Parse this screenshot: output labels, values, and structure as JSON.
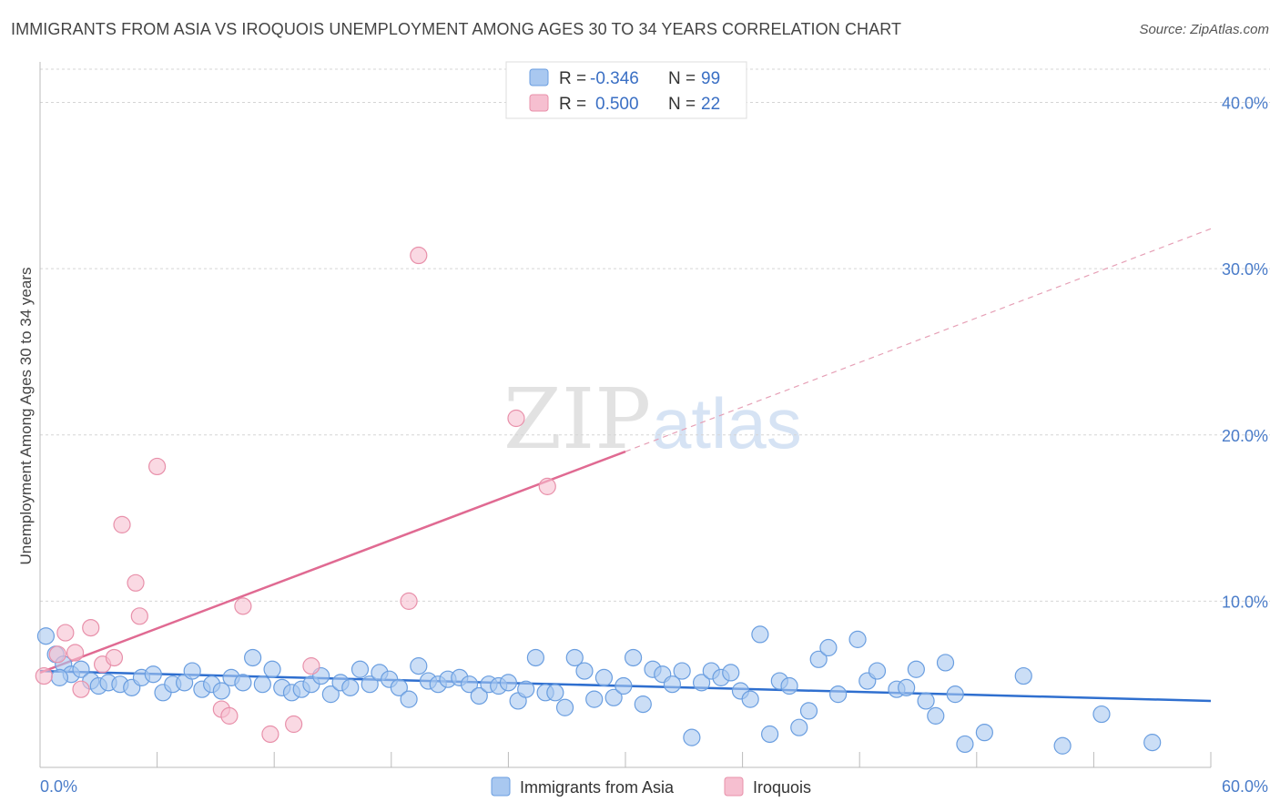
{
  "chart_data": {
    "type": "scatter",
    "title": "IMMIGRANTS FROM ASIA VS IROQUOIS UNEMPLOYMENT AMONG AGES 30 TO 34 YEARS CORRELATION CHART",
    "source": "Source: ZipAtlas.com",
    "xlabel": "",
    "ylabel": "Unemployment Among Ages 30 to 34 years",
    "xlim": [
      0,
      60
    ],
    "ylim": [
      0,
      42
    ],
    "x_tick_labels": [
      "0.0%",
      "60.0%"
    ],
    "y_ticks": [
      10,
      20,
      30,
      40
    ],
    "y_tick_labels": [
      "10.0%",
      "20.0%",
      "30.0%",
      "40.0%"
    ],
    "watermark": {
      "zip": "ZIP",
      "atlas": "atlas"
    },
    "legend": {
      "rows": [
        {
          "r_label": "R =",
          "r_value": "-0.346",
          "n_label": "N =",
          "n_value": "99"
        },
        {
          "r_label": "R =",
          "r_value": "0.500",
          "n_label": "N =",
          "n_value": "22"
        }
      ]
    },
    "series": [
      {
        "name": "Immigrants from Asia",
        "color": "#a9c8f0",
        "stroke": "#6a9ee0",
        "trend_color": "#2f6fcf",
        "trend": {
          "x0": 0,
          "y0": 5.8,
          "x1": 60,
          "y1": 4.0
        },
        "points": [
          [
            0.3,
            7.9
          ],
          [
            0.8,
            6.8
          ],
          [
            1.2,
            6.2
          ],
          [
            1.6,
            5.6
          ],
          [
            2.1,
            5.9
          ],
          [
            2.6,
            5.2
          ],
          [
            3.0,
            4.9
          ],
          [
            3.5,
            5.1
          ],
          [
            4.1,
            5.0
          ],
          [
            4.7,
            4.8
          ],
          [
            5.2,
            5.4
          ],
          [
            5.8,
            5.6
          ],
          [
            6.3,
            4.5
          ],
          [
            6.8,
            5.0
          ],
          [
            7.4,
            5.1
          ],
          [
            7.8,
            5.8
          ],
          [
            8.3,
            4.7
          ],
          [
            8.8,
            5.0
          ],
          [
            9.3,
            4.6
          ],
          [
            9.8,
            5.4
          ],
          [
            10.4,
            5.1
          ],
          [
            10.9,
            6.6
          ],
          [
            11.4,
            5.0
          ],
          [
            11.9,
            5.9
          ],
          [
            12.4,
            4.8
          ],
          [
            12.9,
            4.5
          ],
          [
            13.4,
            4.7
          ],
          [
            13.9,
            5.0
          ],
          [
            14.4,
            5.5
          ],
          [
            14.9,
            4.4
          ],
          [
            15.4,
            5.1
          ],
          [
            15.9,
            4.8
          ],
          [
            16.4,
            5.9
          ],
          [
            16.9,
            5.0
          ],
          [
            17.4,
            5.7
          ],
          [
            17.9,
            5.3
          ],
          [
            18.4,
            4.8
          ],
          [
            18.9,
            4.1
          ],
          [
            19.4,
            6.1
          ],
          [
            19.9,
            5.2
          ],
          [
            20.4,
            5.0
          ],
          [
            20.9,
            5.3
          ],
          [
            21.5,
            5.4
          ],
          [
            22.0,
            5.0
          ],
          [
            22.5,
            4.3
          ],
          [
            23.0,
            5.0
          ],
          [
            23.5,
            4.9
          ],
          [
            24.0,
            5.1
          ],
          [
            24.5,
            4.0
          ],
          [
            24.9,
            4.7
          ],
          [
            25.4,
            6.6
          ],
          [
            25.9,
            4.5
          ],
          [
            26.4,
            4.5
          ],
          [
            26.9,
            3.6
          ],
          [
            27.4,
            6.6
          ],
          [
            27.9,
            5.8
          ],
          [
            28.4,
            4.1
          ],
          [
            28.9,
            5.4
          ],
          [
            29.4,
            4.2
          ],
          [
            29.9,
            4.9
          ],
          [
            30.4,
            6.6
          ],
          [
            30.9,
            3.8
          ],
          [
            31.4,
            5.9
          ],
          [
            31.9,
            5.6
          ],
          [
            32.4,
            5.0
          ],
          [
            32.9,
            5.8
          ],
          [
            33.4,
            1.8
          ],
          [
            33.9,
            5.1
          ],
          [
            34.4,
            5.8
          ],
          [
            34.9,
            5.4
          ],
          [
            35.4,
            5.7
          ],
          [
            35.9,
            4.6
          ],
          [
            36.4,
            4.1
          ],
          [
            36.9,
            8.0
          ],
          [
            37.4,
            2.0
          ],
          [
            37.9,
            5.2
          ],
          [
            38.4,
            4.9
          ],
          [
            38.9,
            2.4
          ],
          [
            39.4,
            3.4
          ],
          [
            39.9,
            6.5
          ],
          [
            40.4,
            7.2
          ],
          [
            40.9,
            4.4
          ],
          [
            41.9,
            7.7
          ],
          [
            42.4,
            5.2
          ],
          [
            42.9,
            5.8
          ],
          [
            43.9,
            4.7
          ],
          [
            44.4,
            4.8
          ],
          [
            44.9,
            5.9
          ],
          [
            45.4,
            4.0
          ],
          [
            45.9,
            3.1
          ],
          [
            46.4,
            6.3
          ],
          [
            46.9,
            4.4
          ],
          [
            47.4,
            1.4
          ],
          [
            48.4,
            2.1
          ],
          [
            50.4,
            5.5
          ],
          [
            52.4,
            1.3
          ],
          [
            54.4,
            3.2
          ],
          [
            57.0,
            1.5
          ],
          [
            1.0,
            5.4
          ]
        ]
      },
      {
        "name": "Iroquois",
        "color": "#f6bfd0",
        "stroke": "#e890aa",
        "trend_color": "#e06a92",
        "trend": {
          "x0": 0,
          "y0": 5.7,
          "x1": 30,
          "y1": 19.0
        },
        "trend_extended": {
          "x0": 30,
          "y0": 19.0,
          "x1": 60,
          "y1": 32.4
        },
        "points": [
          [
            0.2,
            5.5
          ],
          [
            0.9,
            6.8
          ],
          [
            1.3,
            8.1
          ],
          [
            1.8,
            6.9
          ],
          [
            2.1,
            4.7
          ],
          [
            2.6,
            8.4
          ],
          [
            3.2,
            6.2
          ],
          [
            3.8,
            6.6
          ],
          [
            4.2,
            14.6
          ],
          [
            4.9,
            11.1
          ],
          [
            5.1,
            9.1
          ],
          [
            6.0,
            18.1
          ],
          [
            9.3,
            3.5
          ],
          [
            9.7,
            3.1
          ],
          [
            10.4,
            9.7
          ],
          [
            11.8,
            2.0
          ],
          [
            13.0,
            2.6
          ],
          [
            13.9,
            6.1
          ],
          [
            18.9,
            10.0
          ],
          [
            19.4,
            30.8
          ],
          [
            24.4,
            21.0
          ],
          [
            26.0,
            16.9
          ]
        ]
      }
    ]
  }
}
